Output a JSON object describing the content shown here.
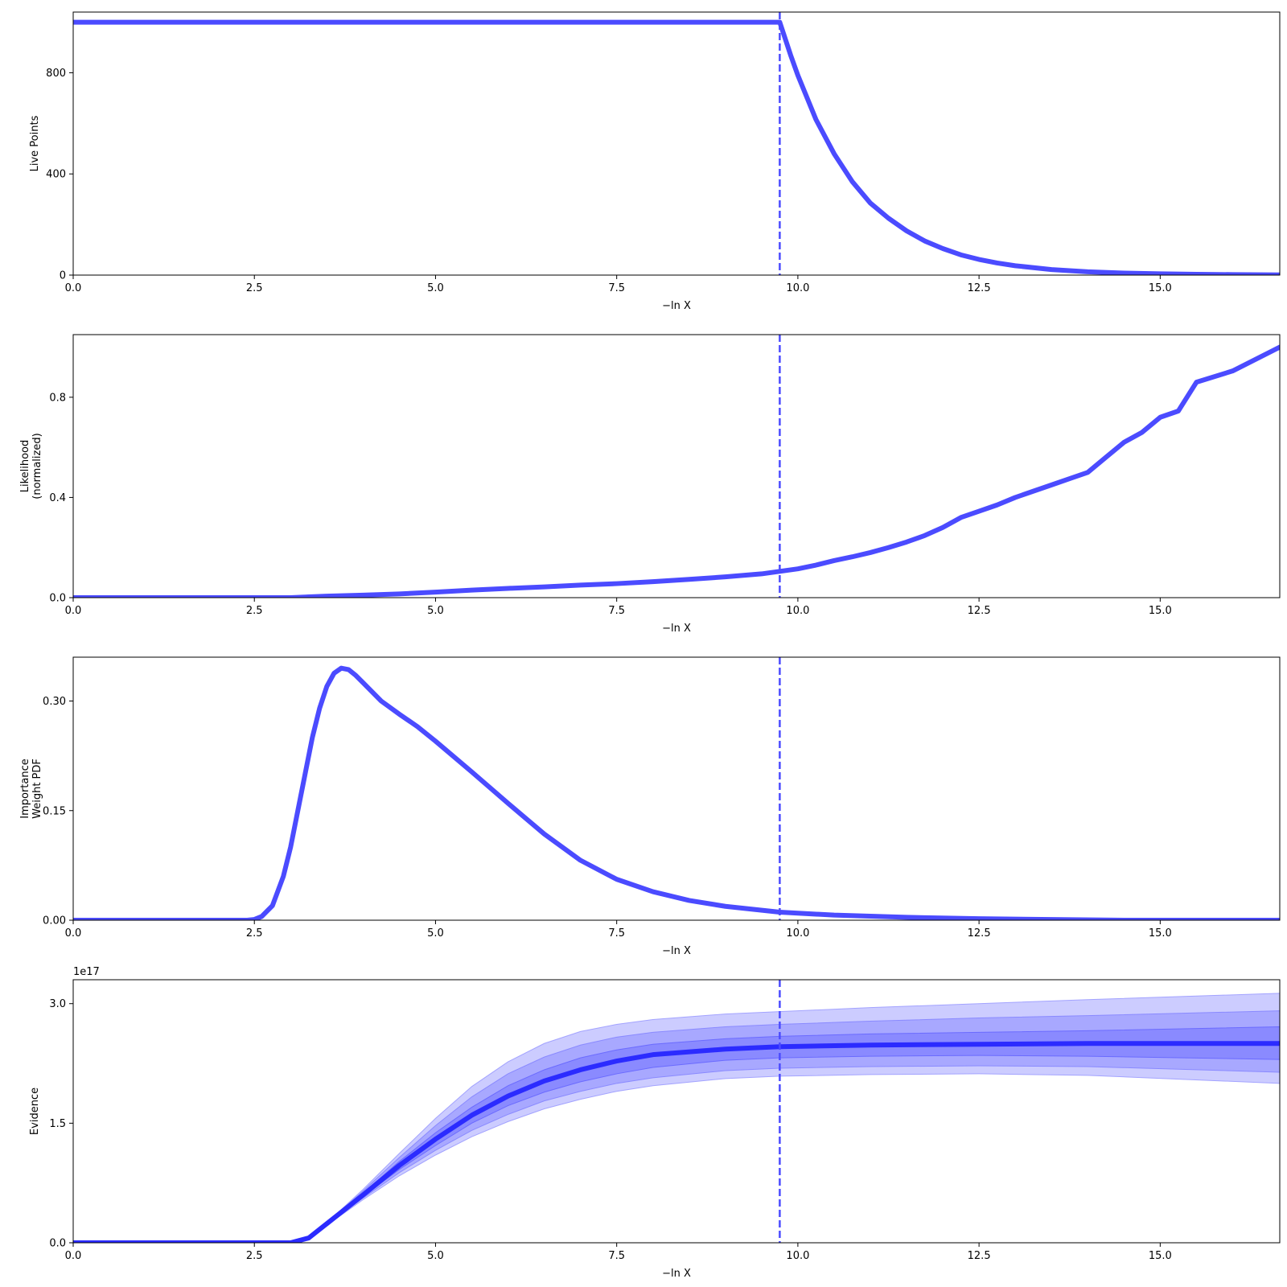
{
  "chart_data": [
    {
      "type": "line",
      "xlabel": "−ln X",
      "ylabel": [
        "Live Points"
      ],
      "xlim": [
        0,
        16.65
      ],
      "ylim": [
        0,
        1040
      ],
      "xticks": [
        0,
        2.5,
        5,
        7.5,
        10,
        12.5,
        15
      ],
      "xtick_labels": [
        "0.0",
        "2.5",
        "5.0",
        "7.5",
        "10.0",
        "12.5",
        "15.0"
      ],
      "yticks": [
        0,
        400,
        800
      ],
      "ytick_labels": [
        "0",
        "400",
        "800"
      ],
      "vline_x": 9.75,
      "series": [
        {
          "color": "#4b4bff",
          "x": [
            0,
            9.75,
            9.9,
            10.0,
            10.25,
            10.5,
            10.75,
            11.0,
            11.25,
            11.5,
            11.75,
            12.0,
            12.25,
            12.5,
            12.75,
            13.0,
            13.5,
            14.0,
            14.5,
            15.0,
            15.5,
            16.0,
            16.65
          ],
          "y": [
            1000,
            1000,
            870,
            790,
            615,
            480,
            370,
            285,
            225,
            175,
            135,
            105,
            80,
            62,
            48,
            37,
            22,
            13,
            8,
            5,
            3,
            2,
            1
          ]
        }
      ]
    },
    {
      "type": "line",
      "xlabel": "−ln X",
      "ylabel": [
        "Likelihood",
        "(normalized)"
      ],
      "xlim": [
        0,
        16.65
      ],
      "ylim": [
        0,
        1.05
      ],
      "xticks": [
        0,
        2.5,
        5,
        7.5,
        10,
        12.5,
        15
      ],
      "xtick_labels": [
        "0.0",
        "2.5",
        "5.0",
        "7.5",
        "10.0",
        "12.5",
        "15.0"
      ],
      "yticks": [
        0,
        0.4,
        0.8
      ],
      "ytick_labels": [
        "0.0",
        "0.4",
        "0.8"
      ],
      "vline_x": 9.75,
      "series": [
        {
          "color": "#4b4bff",
          "x": [
            0,
            3.0,
            3.5,
            4.0,
            4.5,
            5.0,
            5.5,
            6.0,
            6.5,
            7.0,
            7.5,
            8.0,
            8.5,
            9.0,
            9.5,
            9.75,
            10.0,
            10.25,
            10.5,
            10.75,
            11.0,
            11.25,
            11.5,
            11.75,
            12.0,
            12.25,
            12.5,
            12.75,
            13.0,
            13.25,
            13.5,
            13.75,
            14.0,
            14.25,
            14.5,
            14.75,
            15.0,
            15.25,
            15.5,
            16.0,
            16.65
          ],
          "y": [
            0.0,
            0.0,
            0.006,
            0.01,
            0.015,
            0.022,
            0.03,
            0.037,
            0.043,
            0.05,
            0.056,
            0.064,
            0.073,
            0.083,
            0.095,
            0.105,
            0.115,
            0.13,
            0.148,
            0.163,
            0.18,
            0.2,
            0.222,
            0.248,
            0.28,
            0.32,
            0.345,
            0.37,
            0.4,
            0.425,
            0.45,
            0.475,
            0.5,
            0.56,
            0.62,
            0.66,
            0.72,
            0.745,
            0.86,
            0.905,
            1.0
          ]
        }
      ]
    },
    {
      "type": "line",
      "xlabel": "−ln X",
      "ylabel": [
        "Importance",
        "Weight PDF"
      ],
      "xlim": [
        0,
        16.65
      ],
      "ylim": [
        0,
        0.36
      ],
      "xticks": [
        0,
        2.5,
        5,
        7.5,
        10,
        12.5,
        15
      ],
      "xtick_labels": [
        "0.0",
        "2.5",
        "5.0",
        "7.5",
        "10.0",
        "12.5",
        "15.0"
      ],
      "yticks": [
        0,
        0.15,
        0.3
      ],
      "ytick_labels": [
        "0.00",
        "0.15",
        "0.30"
      ],
      "vline_x": 9.75,
      "series": [
        {
          "color": "#4b4bff",
          "x": [
            0,
            2.4,
            2.5,
            2.6,
            2.75,
            2.9,
            3.0,
            3.1,
            3.2,
            3.3,
            3.4,
            3.5,
            3.6,
            3.7,
            3.8,
            3.9,
            4.0,
            4.25,
            4.5,
            4.75,
            5.0,
            5.5,
            6.0,
            6.5,
            7.0,
            7.5,
            8.0,
            8.5,
            9.0,
            9.75,
            10.5,
            11.5,
            12.5,
            13.5,
            14.5,
            15.5,
            16.65
          ],
          "y": [
            0.0,
            0.0,
            0.001,
            0.005,
            0.02,
            0.06,
            0.1,
            0.15,
            0.2,
            0.25,
            0.29,
            0.32,
            0.338,
            0.345,
            0.343,
            0.335,
            0.325,
            0.3,
            0.282,
            0.265,
            0.245,
            0.203,
            0.16,
            0.118,
            0.082,
            0.056,
            0.039,
            0.027,
            0.019,
            0.011,
            0.007,
            0.004,
            0.002,
            0.001,
            0.0,
            0.0,
            0.0
          ]
        }
      ]
    },
    {
      "type": "area",
      "xlabel": "−ln X",
      "ylabel": [
        "Evidence"
      ],
      "offset_label": "1e17",
      "xlim": [
        0,
        16.65
      ],
      "ylim": [
        0,
        3.3
      ],
      "xticks": [
        0,
        2.5,
        5,
        7.5,
        10,
        12.5,
        15
      ],
      "xtick_labels": [
        "0.0",
        "2.5",
        "5.0",
        "7.5",
        "10.0",
        "12.5",
        "15.0"
      ],
      "yticks": [
        0,
        1.5,
        3.0
      ],
      "ytick_labels": [
        "0.0",
        "1.5",
        "3.0"
      ],
      "vline_x": 9.75,
      "x": [
        0,
        3.0,
        3.25,
        3.5,
        4.0,
        4.5,
        5.0,
        5.5,
        6.0,
        6.5,
        7.0,
        7.5,
        8.0,
        9.0,
        9.75,
        11.0,
        12.5,
        14.0,
        16.65
      ],
      "median": [
        0.0,
        0.0,
        0.06,
        0.24,
        0.6,
        0.97,
        1.3,
        1.6,
        1.84,
        2.03,
        2.17,
        2.28,
        2.36,
        2.43,
        2.46,
        2.48,
        2.49,
        2.5,
        2.5
      ],
      "bands": [
        {
          "sigma": 3,
          "color": "#a3a3ff",
          "opacity": 0.55,
          "upper": [
            0.0,
            0.0,
            0.06,
            0.25,
            0.67,
            1.12,
            1.56,
            1.96,
            2.27,
            2.5,
            2.65,
            2.74,
            2.8,
            2.87,
            2.9,
            2.95,
            3.0,
            3.05,
            3.13
          ],
          "lower": [
            0.0,
            0.0,
            0.06,
            0.22,
            0.54,
            0.84,
            1.1,
            1.33,
            1.52,
            1.68,
            1.8,
            1.9,
            1.97,
            2.06,
            2.09,
            2.11,
            2.12,
            2.1,
            2.0
          ]
        },
        {
          "sigma": 2,
          "color": "#8a8aff",
          "opacity": 0.55,
          "upper": [
            0.0,
            0.0,
            0.06,
            0.245,
            0.65,
            1.07,
            1.47,
            1.83,
            2.12,
            2.33,
            2.48,
            2.58,
            2.64,
            2.71,
            2.74,
            2.78,
            2.82,
            2.85,
            2.91
          ],
          "lower": [
            0.0,
            0.0,
            0.06,
            0.23,
            0.56,
            0.88,
            1.16,
            1.41,
            1.61,
            1.78,
            1.9,
            2.0,
            2.07,
            2.16,
            2.19,
            2.21,
            2.22,
            2.21,
            2.14
          ]
        },
        {
          "sigma": 1,
          "color": "#6b6bff",
          "opacity": 0.5,
          "upper": [
            0.0,
            0.0,
            0.06,
            0.24,
            0.62,
            1.02,
            1.38,
            1.7,
            1.97,
            2.17,
            2.32,
            2.42,
            2.49,
            2.56,
            2.59,
            2.62,
            2.64,
            2.66,
            2.71
          ],
          "lower": [
            0.0,
            0.0,
            0.06,
            0.235,
            0.58,
            0.92,
            1.22,
            1.5,
            1.72,
            1.89,
            2.02,
            2.12,
            2.2,
            2.29,
            2.32,
            2.34,
            2.35,
            2.34,
            2.3
          ]
        }
      ],
      "line_color": "#2b2bff"
    }
  ]
}
